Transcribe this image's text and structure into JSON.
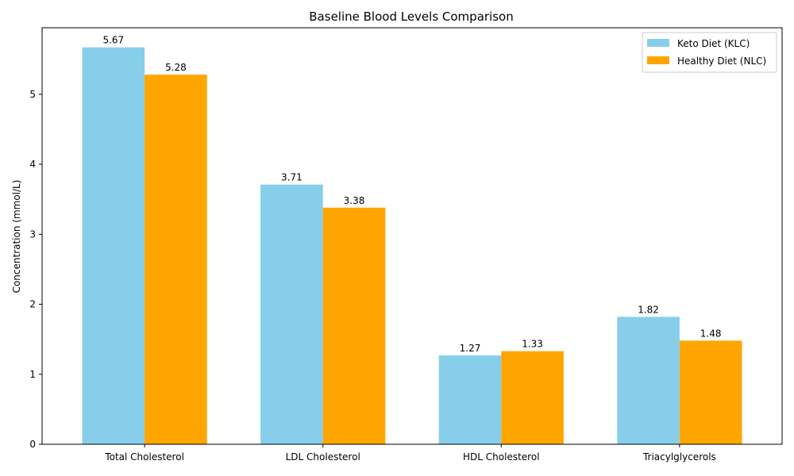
{
  "chart_data": {
    "type": "bar",
    "title": "Baseline Blood Levels Comparison",
    "xlabel": "",
    "ylabel": "Concentration (mmol/L)",
    "ylim": [
      0,
      5.95
    ],
    "yticks": [
      0,
      1,
      2,
      3,
      4,
      5
    ],
    "categories": [
      "Total Cholesterol",
      "LDL Cholesterol",
      "HDL Cholesterol",
      "Triacylglycerols"
    ],
    "series": [
      {
        "name": "Keto Diet (KLC)",
        "color": "#87CEEB",
        "values": [
          5.67,
          3.71,
          1.27,
          1.82
        ]
      },
      {
        "name": "Healthy Diet (NLC)",
        "color": "#FFA500",
        "values": [
          5.28,
          3.38,
          1.33,
          1.48
        ]
      }
    ],
    "legend": "top-right",
    "grid": false
  }
}
